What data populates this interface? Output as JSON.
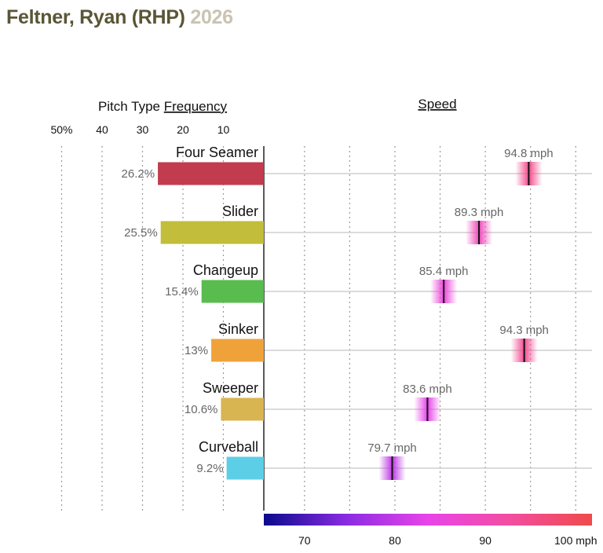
{
  "header": {
    "player": "Feltner, Ryan (RHP)",
    "year": "2026"
  },
  "chart_data": [
    {
      "type": "bar",
      "title_prefix": "Pitch Type ",
      "title": "Frequency",
      "orientation": "horizontal",
      "direction": "right-to-left",
      "xlim": [
        0,
        50
      ],
      "ticks": [
        {
          "value": 50,
          "label": "50%"
        },
        {
          "value": 40,
          "label": "40"
        },
        {
          "value": 30,
          "label": "30"
        },
        {
          "value": 20,
          "label": "20"
        },
        {
          "value": 10,
          "label": "10"
        }
      ],
      "grid": true,
      "categories": [
        "Four Seamer",
        "Slider",
        "Changeup",
        "Sinker",
        "Sweeper",
        "Curveball"
      ],
      "values": [
        26.2,
        25.5,
        15.4,
        13,
        10.6,
        9.2
      ],
      "value_labels": [
        "26.2%",
        "25.5%",
        "15.4%",
        "13%",
        "10.6%",
        "9.2%"
      ],
      "colors": [
        "#c23b4e",
        "#c2bd3a",
        "#58bd4e",
        "#f0a23a",
        "#d8b550",
        "#5ccfe6"
      ]
    },
    {
      "type": "scatter",
      "title": "Speed",
      "xlim": [
        65.5,
        101.8
      ],
      "ticks": [
        {
          "value": 70,
          "label": "70"
        },
        {
          "value": 80,
          "label": "80"
        },
        {
          "value": 90,
          "label": "90"
        },
        {
          "value": 100,
          "label": "100 mph"
        }
      ],
      "grid": true,
      "categories": [
        "Four Seamer",
        "Slider",
        "Changeup",
        "Sinker",
        "Sweeper",
        "Curveball"
      ],
      "values": [
        94.8,
        89.3,
        85.4,
        94.3,
        83.6,
        79.7
      ],
      "value_labels": [
        "94.8 mph",
        "89.3 mph",
        "85.4 mph",
        "94.3 mph",
        "83.6 mph",
        "79.7 mph"
      ],
      "colorscale": [
        "#0a0a8c",
        "#8a2be2",
        "#e844e8",
        "#f24da0",
        "#f04a4a"
      ]
    }
  ]
}
